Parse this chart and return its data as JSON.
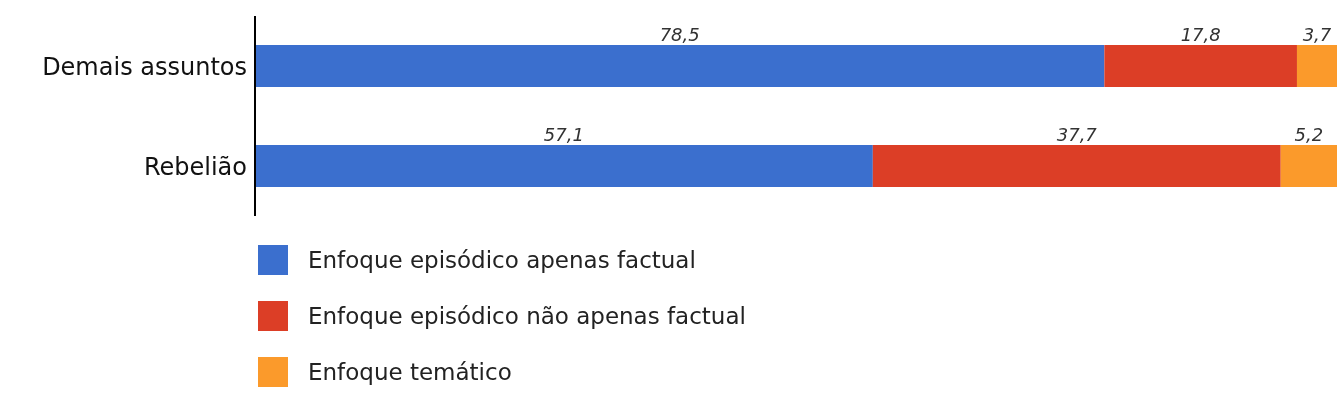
{
  "chart_data": {
    "type": "bar",
    "orientation": "horizontal",
    "stacked": true,
    "categories": [
      "Demais assuntos",
      "Rebelião"
    ],
    "series": [
      {
        "name": "Enfoque episódico apenas factual",
        "color": "#3b6fce",
        "values": [
          78.5,
          57.1
        ],
        "value_labels": [
          "78,5",
          "57,1"
        ]
      },
      {
        "name": "Enfoque episódico não apenas factual",
        "color": "#dc3e26",
        "values": [
          17.8,
          37.7
        ],
        "value_labels": [
          "17,8",
          "37,7"
        ]
      },
      {
        "name": "Enfoque temático",
        "color": "#fb9a2b",
        "values": [
          3.7,
          5.2
        ],
        "value_labels": [
          "3,7",
          "5,2"
        ]
      }
    ],
    "legend": "bottom left",
    "grid": false
  }
}
